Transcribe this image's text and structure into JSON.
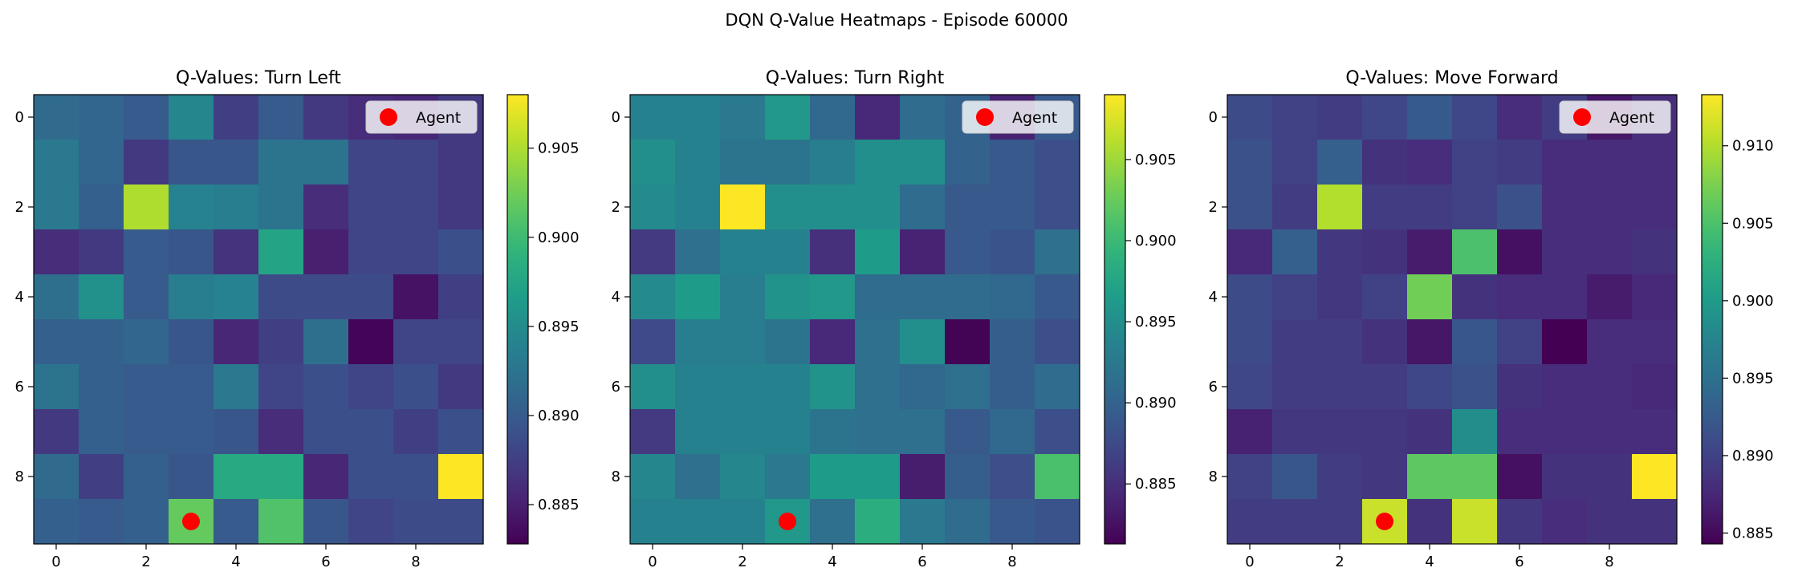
{
  "figure": {
    "title": "DQN Q-Value Heatmaps - Episode 60000"
  },
  "chart_data": [
    {
      "type": "heatmap",
      "title": "Q-Values: Turn Left",
      "xlabel": "",
      "ylabel": "",
      "x_ticks": [
        0,
        2,
        4,
        6,
        8
      ],
      "y_ticks": [
        0,
        2,
        4,
        6,
        8
      ],
      "colormap": "viridis",
      "vmin": 0.8828,
      "vmax": 0.908,
      "colorbar_ticks": [
        0.885,
        0.89,
        0.895,
        0.9,
        0.905
      ],
      "colorbar_tick_labels": [
        "0.885",
        "0.890",
        "0.895",
        "0.900",
        "0.905"
      ],
      "legend": {
        "label": "Agent",
        "color": "#ff0000",
        "placement": "upper right"
      },
      "agent": {
        "x": 3,
        "y": 9
      },
      "values": [
        [
          0.8915,
          0.891,
          0.89,
          0.8945,
          0.8875,
          0.89,
          0.887,
          0.886,
          0.8855,
          0.887
        ],
        [
          0.893,
          0.891,
          0.887,
          0.8895,
          0.8895,
          0.8925,
          0.8925,
          0.888,
          0.888,
          0.887
        ],
        [
          0.893,
          0.8905,
          0.905,
          0.894,
          0.8935,
          0.8925,
          0.886,
          0.888,
          0.888,
          0.887
        ],
        [
          0.886,
          0.887,
          0.89,
          0.8895,
          0.8865,
          0.8975,
          0.885,
          0.888,
          0.888,
          0.889
        ],
        [
          0.892,
          0.8955,
          0.89,
          0.8935,
          0.894,
          0.8885,
          0.8885,
          0.8885,
          0.884,
          0.8875
        ],
        [
          0.8905,
          0.8905,
          0.891,
          0.8895,
          0.8855,
          0.8875,
          0.892,
          0.883,
          0.888,
          0.888
        ],
        [
          0.8925,
          0.8905,
          0.89,
          0.89,
          0.893,
          0.888,
          0.889,
          0.888,
          0.889,
          0.887
        ],
        [
          0.887,
          0.8905,
          0.89,
          0.89,
          0.8895,
          0.886,
          0.889,
          0.889,
          0.8875,
          0.889
        ],
        [
          0.8915,
          0.8875,
          0.8905,
          0.8895,
          0.898,
          0.898,
          0.8855,
          0.889,
          0.889,
          0.908
        ],
        [
          0.8905,
          0.89,
          0.8905,
          0.902,
          0.89,
          0.901,
          0.8895,
          0.888,
          0.8885,
          0.8885
        ]
      ]
    },
    {
      "type": "heatmap",
      "title": "Q-Values: Turn Right",
      "xlabel": "",
      "ylabel": "",
      "x_ticks": [
        0,
        2,
        4,
        6,
        8
      ],
      "y_ticks": [
        0,
        2,
        4,
        6,
        8
      ],
      "colormap": "viridis",
      "vmin": 0.8813,
      "vmax": 0.909,
      "colorbar_ticks": [
        0.885,
        0.89,
        0.895,
        0.9,
        0.905
      ],
      "colorbar_tick_labels": [
        "0.885",
        "0.890",
        "0.895",
        "0.900",
        "0.905"
      ],
      "legend": {
        "label": "Agent",
        "color": "#ff0000",
        "placement": "upper right"
      },
      "agent": {
        "x": 3,
        "y": 9
      },
      "values": [
        [
          0.8935,
          0.8935,
          0.8925,
          0.896,
          0.8905,
          0.8845,
          0.891,
          0.89,
          0.884,
          0.889
        ],
        [
          0.895,
          0.8935,
          0.892,
          0.892,
          0.893,
          0.895,
          0.895,
          0.89,
          0.889,
          0.888
        ],
        [
          0.8945,
          0.8935,
          0.909,
          0.895,
          0.895,
          0.895,
          0.891,
          0.889,
          0.889,
          0.888
        ],
        [
          0.886,
          0.8915,
          0.8935,
          0.8935,
          0.885,
          0.8965,
          0.884,
          0.889,
          0.8885,
          0.8915
        ],
        [
          0.8945,
          0.8965,
          0.893,
          0.8955,
          0.896,
          0.891,
          0.891,
          0.891,
          0.8905,
          0.889
        ],
        [
          0.8875,
          0.893,
          0.893,
          0.892,
          0.8845,
          0.8915,
          0.895,
          0.8815,
          0.8895,
          0.888
        ],
        [
          0.895,
          0.8935,
          0.8935,
          0.8935,
          0.8955,
          0.8915,
          0.8905,
          0.8915,
          0.8895,
          0.891
        ],
        [
          0.886,
          0.8935,
          0.8935,
          0.8935,
          0.892,
          0.8915,
          0.8915,
          0.889,
          0.8905,
          0.888
        ],
        [
          0.894,
          0.8915,
          0.894,
          0.8925,
          0.8965,
          0.8965,
          0.8835,
          0.8895,
          0.888,
          0.901
        ],
        [
          0.8935,
          0.8935,
          0.8935,
          0.896,
          0.8915,
          0.8985,
          0.8925,
          0.891,
          0.889,
          0.8885
        ]
      ]
    },
    {
      "type": "heatmap",
      "title": "Q-Values: Move Forward",
      "xlabel": "",
      "ylabel": "",
      "x_ticks": [
        0,
        2,
        4,
        6,
        8
      ],
      "y_ticks": [
        0,
        2,
        4,
        6,
        8
      ],
      "colormap": "viridis",
      "vmin": 0.8843,
      "vmax": 0.9133,
      "colorbar_ticks": [
        0.885,
        0.89,
        0.895,
        0.9,
        0.905,
        0.91
      ],
      "colorbar_tick_labels": [
        "0.885",
        "0.890",
        "0.895",
        "0.900",
        "0.905",
        "0.910"
      ],
      "legend": {
        "label": "Agent",
        "color": "#ff0000",
        "placement": "upper right"
      },
      "agent": {
        "x": 3,
        "y": 9
      },
      "values": [
        [
          0.891,
          0.89,
          0.8895,
          0.8905,
          0.8925,
          0.8905,
          0.888,
          0.8895,
          0.886,
          0.888
        ],
        [
          0.8915,
          0.89,
          0.893,
          0.8885,
          0.888,
          0.89,
          0.8895,
          0.888,
          0.888,
          0.888
        ],
        [
          0.8915,
          0.8895,
          0.91,
          0.8895,
          0.8895,
          0.89,
          0.8915,
          0.888,
          0.888,
          0.888
        ],
        [
          0.8875,
          0.893,
          0.889,
          0.8885,
          0.8865,
          0.905,
          0.8855,
          0.888,
          0.888,
          0.8885
        ],
        [
          0.891,
          0.89,
          0.889,
          0.89,
          0.907,
          0.8885,
          0.888,
          0.888,
          0.8865,
          0.8875
        ],
        [
          0.891,
          0.8895,
          0.8895,
          0.8885,
          0.886,
          0.892,
          0.89,
          0.8843,
          0.888,
          0.888
        ],
        [
          0.8905,
          0.8895,
          0.8895,
          0.8895,
          0.8905,
          0.8915,
          0.8885,
          0.888,
          0.888,
          0.8875
        ],
        [
          0.887,
          0.889,
          0.889,
          0.889,
          0.8885,
          0.8985,
          0.888,
          0.888,
          0.888,
          0.888
        ],
        [
          0.89,
          0.892,
          0.8895,
          0.889,
          0.906,
          0.906,
          0.8855,
          0.8885,
          0.8885,
          0.9133
        ],
        [
          0.8895,
          0.8895,
          0.8895,
          0.911,
          0.8885,
          0.911,
          0.889,
          0.888,
          0.8885,
          0.8885
        ]
      ]
    }
  ]
}
